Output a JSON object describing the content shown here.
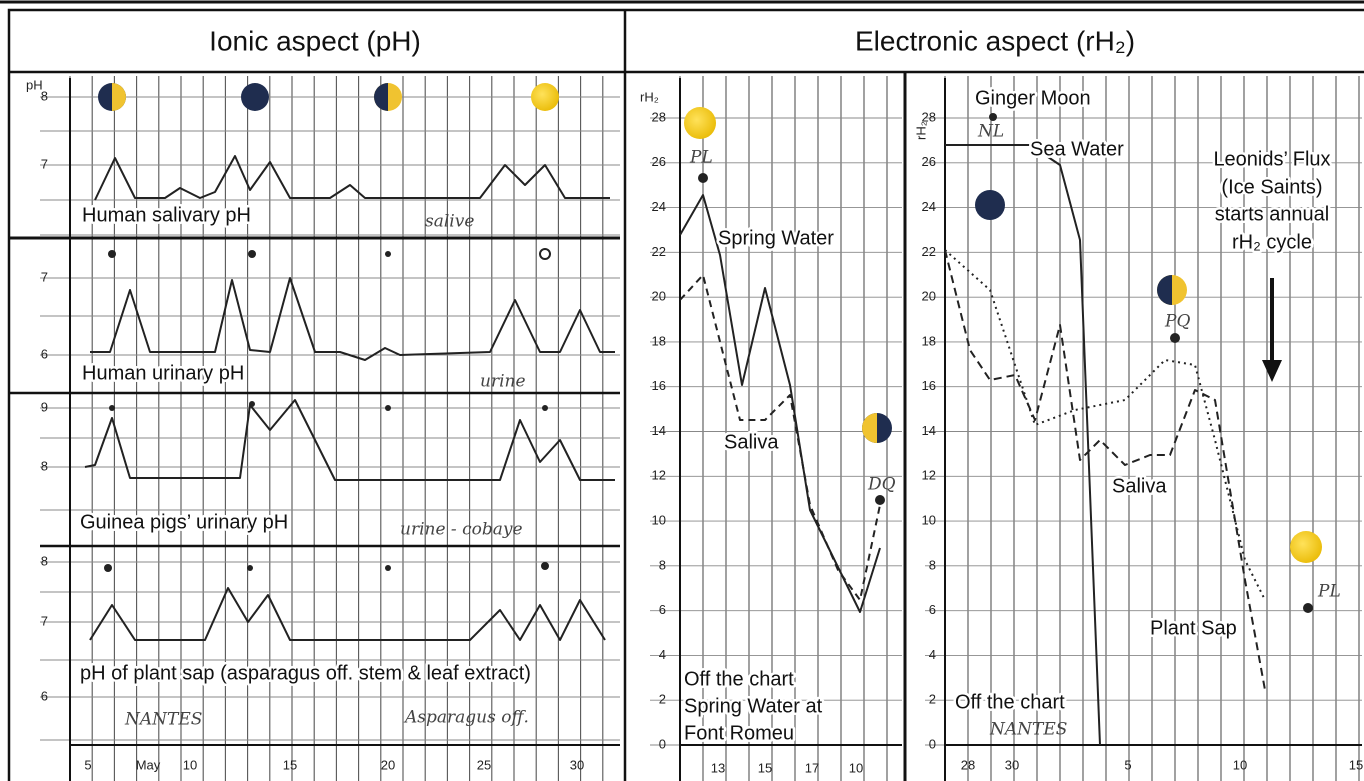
{
  "header": {
    "left_title": "Ionic aspect (pH)",
    "right_title": "Electronic aspect (rH₂)"
  },
  "ionic": {
    "y_axis_label": "pH",
    "panels": [
      {
        "label": "Human salivary pH",
        "handwritten": "salive",
        "y_ticks": [
          "8",
          "7"
        ]
      },
      {
        "label": "Human urinary pH",
        "handwritten": "urine",
        "y_ticks": [
          "7",
          "6"
        ]
      },
      {
        "label": "Guinea pigs’ urinary pH",
        "handwritten": "urine - cobaye",
        "y_ticks": [
          "9",
          "8"
        ]
      },
      {
        "label": "pH of plant sap (asparagus off. stem & leaf extract)",
        "handwritten": "Asparagus off.",
        "y_ticks": [
          "8",
          "7",
          "6"
        ]
      }
    ],
    "place": "NANTES",
    "x_ticks": [
      "5",
      "May",
      "10",
      "15",
      "20",
      "25",
      "30"
    ]
  },
  "electronic_left": {
    "y_axis_label": "rH₂",
    "y_ticks": [
      "28",
      "26",
      "24",
      "22",
      "20",
      "18",
      "16",
      "14",
      "12",
      "10",
      "8",
      "6",
      "4",
      "2",
      "0"
    ],
    "spring_water": "Spring Water",
    "saliva": "Saliva",
    "off_chart": {
      "lines": [
        "Off the chart",
        "Spring Water at",
        "Font Romeu"
      ]
    },
    "phases": [
      "PL",
      "DQ"
    ],
    "x_ticks": [
      "13",
      "15",
      "17",
      "10"
    ]
  },
  "electronic_right": {
    "y_axis_label": "rH₂",
    "ginger_moon": "Ginger Moon",
    "sea_water": "Sea Water",
    "leonids": {
      "lines": [
        "Leonids’ Flux",
        "(Ice Saints)",
        "starts annual",
        "rH₂ cycle"
      ]
    },
    "saliva": "Saliva",
    "plant_sap": "Plant Sap",
    "off_chart": "Off the chart",
    "phases": [
      "NL",
      "PQ",
      "PL"
    ],
    "place": "NANTES",
    "x_ticks": [
      "28",
      "30",
      "5",
      "10",
      "15"
    ]
  }
}
